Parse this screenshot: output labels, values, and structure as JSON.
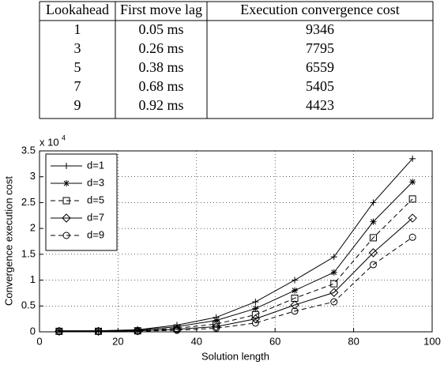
{
  "table": {
    "header": [
      "Lookahead",
      "First move lag",
      "Execution convergence cost"
    ],
    "rows": [
      [
        "1",
        "0.05 ms",
        "9346"
      ],
      [
        "3",
        "0.26 ms",
        "7795"
      ],
      [
        "5",
        "0.38 ms",
        "6559"
      ],
      [
        "7",
        "0.68 ms",
        "5405"
      ],
      [
        "9",
        "0.92 ms",
        "4423"
      ]
    ]
  },
  "chart_data": {
    "type": "line",
    "x_label": "Solution length",
    "y_label": "Convergence execution cost",
    "y_multiplier": {
      "base": "x 10",
      "exponent": "4"
    },
    "x": [
      5,
      15,
      25,
      35,
      45,
      55,
      65,
      75,
      85,
      95
    ],
    "xlim": [
      0,
      100
    ],
    "xticks": [
      0,
      20,
      40,
      60,
      80,
      100
    ],
    "ylim": [
      0,
      3.5
    ],
    "yticks": [
      0,
      0.5,
      1,
      1.5,
      2,
      2.5,
      3,
      3.5
    ],
    "grid": true,
    "legend": "upper left",
    "series": [
      {
        "name": "d=1",
        "color": "#000000",
        "dash": false,
        "marker": "plus",
        "values": [
          0.02,
          0.02,
          0.04,
          0.13,
          0.28,
          0.58,
          1.0,
          1.45,
          2.5,
          3.35
        ]
      },
      {
        "name": "d=3",
        "color": "#000000",
        "dash": false,
        "marker": "star",
        "values": [
          0.02,
          0.02,
          0.03,
          0.1,
          0.22,
          0.45,
          0.8,
          1.15,
          2.13,
          2.9
        ]
      },
      {
        "name": "d=5",
        "color": "#000000",
        "dash": true,
        "marker": "square",
        "values": [
          0.01,
          0.01,
          0.02,
          0.07,
          0.15,
          0.33,
          0.65,
          0.93,
          1.82,
          2.57
        ]
      },
      {
        "name": "d=7",
        "color": "#000000",
        "dash": false,
        "marker": "diamond",
        "values": [
          0.01,
          0.01,
          0.02,
          0.05,
          0.1,
          0.25,
          0.52,
          0.76,
          1.53,
          2.2
        ]
      },
      {
        "name": "d=9",
        "color": "#000000",
        "dash": true,
        "marker": "circle",
        "values": [
          0.01,
          0.01,
          0.01,
          0.03,
          0.07,
          0.17,
          0.4,
          0.58,
          1.3,
          1.83
        ]
      }
    ]
  }
}
